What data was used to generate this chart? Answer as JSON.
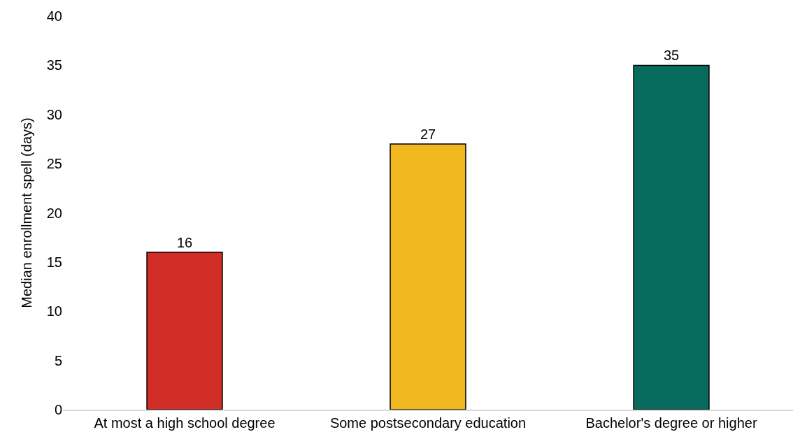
{
  "chart_data": {
    "type": "bar",
    "ylabel": "Median enrollment spell (days)",
    "categories": [
      "At most a high school degree",
      "Some postsecondary education",
      "Bachelor's degree or higher"
    ],
    "values": [
      16,
      27,
      35
    ],
    "colors": [
      "#d22e27",
      "#f0b71f",
      "#076b5e"
    ],
    "ylim": [
      0,
      40
    ],
    "yticks": [
      0,
      5,
      10,
      15,
      20,
      25,
      30,
      35,
      40
    ],
    "data_labels": true,
    "legend": false
  }
}
